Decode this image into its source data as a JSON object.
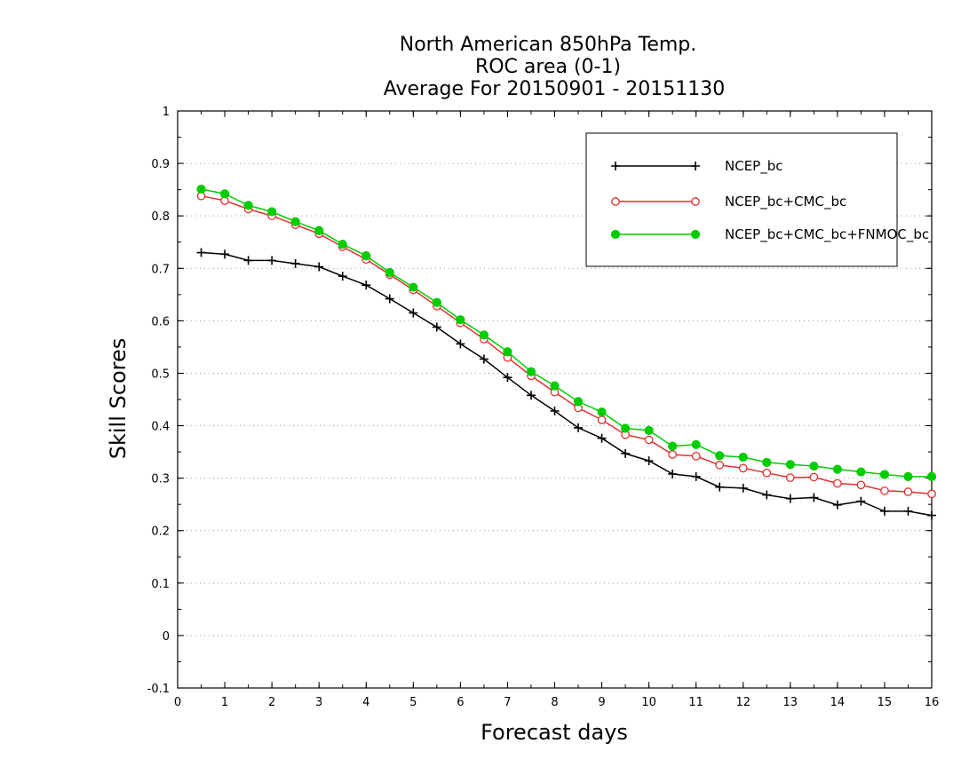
{
  "chart_data": {
    "type": "line",
    "title_lines": [
      "North American 850hPa Temp.",
      "ROC area (0-1)",
      "Average For 20150901 - 20151130"
    ],
    "xlabel": "Forecast days",
    "ylabel": "Skill Scores",
    "xlim": [
      0,
      16
    ],
    "ylim": [
      -0.1,
      1
    ],
    "x_ticks": [
      "0",
      "1",
      "2",
      "3",
      "4",
      "5",
      "6",
      "7",
      "8",
      "9",
      "10",
      "11",
      "12",
      "13",
      "14",
      "15",
      "16"
    ],
    "y_ticks": [
      "-0.1",
      "0",
      "0.1",
      "0.2",
      "0.3",
      "0.4",
      "0.5",
      "0.6",
      "0.7",
      "0.8",
      "0.9",
      "1"
    ],
    "grid": "horizontal dotted",
    "legend_position": "top-right",
    "x": [
      0.5,
      1,
      1.5,
      2,
      2.5,
      3,
      3.5,
      4,
      4.5,
      5,
      5.5,
      6,
      6.5,
      7,
      7.5,
      8,
      8.5,
      9,
      9.5,
      10,
      10.5,
      11,
      11.5,
      12,
      12.5,
      13,
      13.5,
      14,
      14.5,
      15,
      15.5,
      16
    ],
    "series": [
      {
        "name": "NCEP_bc",
        "color": "#000000",
        "marker": "plus",
        "values": [
          0.73,
          0.727,
          0.715,
          0.715,
          0.709,
          0.703,
          0.685,
          0.668,
          0.642,
          0.615,
          0.588,
          0.556,
          0.527,
          0.492,
          0.458,
          0.428,
          0.396,
          0.376,
          0.347,
          0.333,
          0.308,
          0.303,
          0.283,
          0.281,
          0.268,
          0.261,
          0.263,
          0.249,
          0.256,
          0.237,
          0.237,
          0.229
        ]
      },
      {
        "name": "NCEP_bc+CMC_bc",
        "color": "#e03030",
        "marker": "open-circle",
        "values": [
          0.838,
          0.829,
          0.813,
          0.8,
          0.783,
          0.766,
          0.741,
          0.717,
          0.688,
          0.659,
          0.628,
          0.596,
          0.565,
          0.53,
          0.495,
          0.464,
          0.434,
          0.411,
          0.383,
          0.373,
          0.345,
          0.342,
          0.325,
          0.319,
          0.31,
          0.301,
          0.302,
          0.29,
          0.287,
          0.276,
          0.274,
          0.27
        ]
      },
      {
        "name": "NCEP_bc+CMC_bc+FNMOC_bc",
        "color": "#00cc00",
        "marker": "filled-circle",
        "values": [
          0.851,
          0.842,
          0.82,
          0.808,
          0.789,
          0.772,
          0.746,
          0.724,
          0.692,
          0.664,
          0.635,
          0.602,
          0.573,
          0.541,
          0.503,
          0.476,
          0.446,
          0.426,
          0.395,
          0.391,
          0.361,
          0.364,
          0.343,
          0.34,
          0.33,
          0.326,
          0.323,
          0.317,
          0.312,
          0.307,
          0.303,
          0.303
        ]
      }
    ]
  }
}
